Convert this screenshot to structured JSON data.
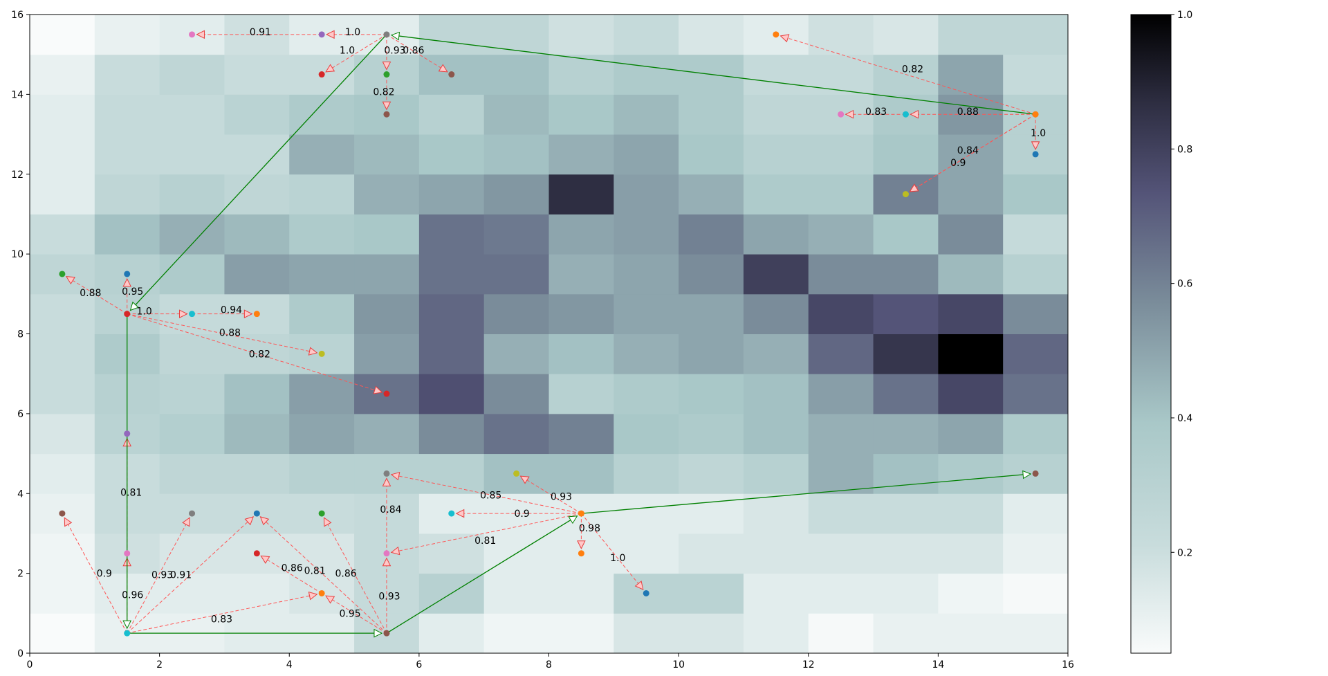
{
  "chart_data": {
    "type": "heatmap",
    "title": "",
    "xlabel": "",
    "ylabel": "",
    "xlim": [
      0,
      16
    ],
    "ylim": [
      0,
      16
    ],
    "x_ticks": [
      0,
      2,
      4,
      6,
      8,
      10,
      12,
      14,
      16
    ],
    "y_ticks": [
      0,
      2,
      4,
      6,
      8,
      10,
      12,
      14,
      16
    ],
    "grid": false,
    "legend": "none",
    "colormap": "bone_r",
    "colorbar": {
      "range": [
        0.05,
        1.0
      ],
      "ticks": [
        0.2,
        0.4,
        0.6,
        0.8,
        1.0
      ]
    },
    "heatmap": [
      [
        0.05,
        0.1,
        0.1,
        0.12,
        0.12,
        0.22,
        0.12,
        0.08,
        0.08,
        0.15,
        0.15,
        0.12,
        0.06,
        0.1,
        0.1,
        0.1
      ],
      [
        0.08,
        0.12,
        0.12,
        0.12,
        0.15,
        0.22,
        0.3,
        0.12,
        0.12,
        0.28,
        0.28,
        0.12,
        0.12,
        0.12,
        0.08,
        0.06
      ],
      [
        0.08,
        0.18,
        0.15,
        0.15,
        0.15,
        0.22,
        0.18,
        0.12,
        0.12,
        0.12,
        0.15,
        0.15,
        0.15,
        0.15,
        0.15,
        0.1
      ],
      [
        0.1,
        0.2,
        0.2,
        0.2,
        0.2,
        0.22,
        0.12,
        0.12,
        0.12,
        0.12,
        0.12,
        0.15,
        0.2,
        0.2,
        0.2,
        0.12
      ],
      [
        0.12,
        0.2,
        0.25,
        0.25,
        0.3,
        0.3,
        0.3,
        0.4,
        0.4,
        0.3,
        0.25,
        0.3,
        0.45,
        0.4,
        0.35,
        0.3
      ],
      [
        0.15,
        0.28,
        0.32,
        0.42,
        0.48,
        0.45,
        0.55,
        0.62,
        0.58,
        0.38,
        0.35,
        0.4,
        0.45,
        0.45,
        0.48,
        0.35
      ],
      [
        0.2,
        0.3,
        0.28,
        0.4,
        0.5,
        0.62,
        0.72,
        0.55,
        0.3,
        0.35,
        0.38,
        0.4,
        0.5,
        0.62,
        0.75,
        0.62
      ],
      [
        0.2,
        0.35,
        0.25,
        0.25,
        0.28,
        0.5,
        0.65,
        0.45,
        0.4,
        0.45,
        0.48,
        0.45,
        0.65,
        0.82,
        1.0,
        0.65
      ],
      [
        0.2,
        0.28,
        0.22,
        0.22,
        0.35,
        0.52,
        0.65,
        0.55,
        0.52,
        0.48,
        0.48,
        0.55,
        0.75,
        0.7,
        0.75,
        0.55
      ],
      [
        0.25,
        0.3,
        0.35,
        0.5,
        0.48,
        0.48,
        0.62,
        0.62,
        0.45,
        0.48,
        0.55,
        0.78,
        0.55,
        0.55,
        0.42,
        0.3
      ],
      [
        0.2,
        0.4,
        0.45,
        0.42,
        0.35,
        0.38,
        0.62,
        0.6,
        0.48,
        0.5,
        0.58,
        0.48,
        0.45,
        0.38,
        0.55,
        0.22
      ],
      [
        0.12,
        0.25,
        0.3,
        0.25,
        0.28,
        0.45,
        0.48,
        0.52,
        0.85,
        0.5,
        0.45,
        0.35,
        0.35,
        0.58,
        0.48,
        0.38
      ],
      [
        0.12,
        0.22,
        0.22,
        0.22,
        0.45,
        0.42,
        0.38,
        0.4,
        0.45,
        0.48,
        0.38,
        0.3,
        0.3,
        0.38,
        0.48,
        0.3
      ],
      [
        0.12,
        0.22,
        0.22,
        0.28,
        0.35,
        0.38,
        0.3,
        0.42,
        0.38,
        0.42,
        0.35,
        0.25,
        0.25,
        0.35,
        0.52,
        0.3
      ],
      [
        0.1,
        0.2,
        0.25,
        0.2,
        0.2,
        0.3,
        0.4,
        0.4,
        0.3,
        0.35,
        0.35,
        0.22,
        0.22,
        0.3,
        0.48,
        0.22
      ],
      [
        0.05,
        0.1,
        0.12,
        0.18,
        0.12,
        0.12,
        0.25,
        0.25,
        0.18,
        0.22,
        0.15,
        0.12,
        0.18,
        0.15,
        0.25,
        0.25
      ]
    ],
    "points": [
      {
        "x": 5.5,
        "y": 15.5,
        "color": "#7f7f7f"
      },
      {
        "x": 4.5,
        "y": 15.5,
        "color": "#9467bd"
      },
      {
        "x": 2.5,
        "y": 15.5,
        "color": "#e377c2"
      },
      {
        "x": 4.5,
        "y": 14.5,
        "color": "#d62728"
      },
      {
        "x": 5.5,
        "y": 14.5,
        "color": "#2ca02c"
      },
      {
        "x": 5.5,
        "y": 13.5,
        "color": "#8c564b"
      },
      {
        "x": 6.5,
        "y": 14.5,
        "color": "#8c564b"
      },
      {
        "x": 15.5,
        "y": 13.5,
        "color": "#ff7f0e"
      },
      {
        "x": 11.5,
        "y": 15.5,
        "color": "#ff7f0e"
      },
      {
        "x": 13.5,
        "y": 13.5,
        "color": "#17becf"
      },
      {
        "x": 12.5,
        "y": 13.5,
        "color": "#e377c2"
      },
      {
        "x": 15.5,
        "y": 12.5,
        "color": "#1f77b4"
      },
      {
        "x": 13.5,
        "y": 11.5,
        "color": "#bcbd22"
      },
      {
        "x": 1.5,
        "y": 8.5,
        "color": "#d62728"
      },
      {
        "x": 0.5,
        "y": 9.5,
        "color": "#2ca02c"
      },
      {
        "x": 1.5,
        "y": 9.5,
        "color": "#1f77b4"
      },
      {
        "x": 2.5,
        "y": 8.5,
        "color": "#17becf"
      },
      {
        "x": 3.5,
        "y": 8.5,
        "color": "#ff7f0e"
      },
      {
        "x": 4.5,
        "y": 7.5,
        "color": "#bcbd22"
      },
      {
        "x": 5.5,
        "y": 6.5,
        "color": "#d62728"
      },
      {
        "x": 1.5,
        "y": 5.5,
        "color": "#9467bd"
      },
      {
        "x": 1.5,
        "y": 0.5,
        "color": "#17becf"
      },
      {
        "x": 0.5,
        "y": 3.5,
        "color": "#8c564b"
      },
      {
        "x": 1.5,
        "y": 2.5,
        "color": "#e377c2"
      },
      {
        "x": 2.5,
        "y": 3.5,
        "color": "#7f7f7f"
      },
      {
        "x": 3.5,
        "y": 3.5,
        "color": "#1f77b4"
      },
      {
        "x": 4.5,
        "y": 1.5,
        "color": "#ff7f0e"
      },
      {
        "x": 5.5,
        "y": 0.5,
        "color": "#8c564b"
      },
      {
        "x": 3.5,
        "y": 2.5,
        "color": "#d62728"
      },
      {
        "x": 4.5,
        "y": 3.5,
        "color": "#2ca02c"
      },
      {
        "x": 5.5,
        "y": 2.5,
        "color": "#e377c2"
      },
      {
        "x": 5.5,
        "y": 4.5,
        "color": "#7f7f7f"
      },
      {
        "x": 8.5,
        "y": 3.5,
        "color": "#ff7f0e"
      },
      {
        "x": 7.5,
        "y": 4.5,
        "color": "#bcbd22"
      },
      {
        "x": 6.5,
        "y": 3.5,
        "color": "#17becf"
      },
      {
        "x": 8.5,
        "y": 2.5,
        "color": "#ff7f0e"
      },
      {
        "x": 9.5,
        "y": 1.5,
        "color": "#1f77b4"
      },
      {
        "x": 15.5,
        "y": 4.5,
        "color": "#8c564b"
      }
    ],
    "green_edges": [
      {
        "from": [
          15.5,
          13.5
        ],
        "to": [
          5.5,
          15.5
        ]
      },
      {
        "from": [
          5.5,
          15.5
        ],
        "to": [
          1.5,
          8.5
        ]
      },
      {
        "from": [
          1.5,
          8.5
        ],
        "to": [
          1.5,
          0.5
        ]
      },
      {
        "from": [
          1.5,
          0.5
        ],
        "to": [
          5.5,
          0.5
        ]
      },
      {
        "from": [
          5.5,
          0.5
        ],
        "to": [
          8.5,
          3.5
        ]
      },
      {
        "from": [
          8.5,
          3.5
        ],
        "to": [
          15.5,
          4.5
        ]
      }
    ],
    "red_edges": [
      {
        "from": [
          5.5,
          15.5
        ],
        "to": [
          4.5,
          15.5
        ],
        "label": "1.0"
      },
      {
        "from": [
          4.5,
          15.5
        ],
        "to": [
          2.5,
          15.5
        ],
        "label": "0.91"
      },
      {
        "from": [
          5.5,
          15.5
        ],
        "to": [
          4.5,
          14.5
        ],
        "label": "1.0"
      },
      {
        "from": [
          5.5,
          15.5
        ],
        "to": [
          5.5,
          14.5
        ],
        "label": "0.93"
      },
      {
        "from": [
          5.5,
          14.5
        ],
        "to": [
          5.5,
          13.5
        ],
        "label": "0.82"
      },
      {
        "from": [
          5.5,
          15.5
        ],
        "to": [
          6.5,
          14.5
        ],
        "label": "0.86"
      },
      {
        "from": [
          15.5,
          13.5
        ],
        "to": [
          11.5,
          15.5
        ],
        "label": "0.82"
      },
      {
        "from": [
          15.5,
          13.5
        ],
        "to": [
          13.5,
          13.5
        ],
        "label": "0.88"
      },
      {
        "from": [
          13.5,
          13.5
        ],
        "to": [
          12.5,
          13.5
        ],
        "label": "0.83"
      },
      {
        "from": [
          15.5,
          13.5
        ],
        "to": [
          15.5,
          12.5
        ],
        "label": "1.0"
      },
      {
        "from": [
          15.5,
          13.5
        ],
        "to": [
          13.5,
          11.5
        ],
        "label": "0.84"
      },
      {
        "from": [
          15.5,
          13.5
        ],
        "to": [
          13.5,
          11.5
        ],
        "label": "0.9"
      },
      {
        "from": [
          1.5,
          8.5
        ],
        "to": [
          0.5,
          9.5
        ],
        "label": "0.88"
      },
      {
        "from": [
          1.5,
          8.5
        ],
        "to": [
          1.5,
          9.5
        ],
        "label": "0.95"
      },
      {
        "from": [
          1.5,
          8.5
        ],
        "to": [
          2.5,
          8.5
        ],
        "label": "1.0"
      },
      {
        "from": [
          2.5,
          8.5
        ],
        "to": [
          3.5,
          8.5
        ],
        "label": "0.94"
      },
      {
        "from": [
          1.5,
          8.5
        ],
        "to": [
          4.5,
          7.5
        ],
        "label": "0.88"
      },
      {
        "from": [
          1.5,
          8.5
        ],
        "to": [
          5.5,
          6.5
        ],
        "label": "0.82"
      },
      {
        "from": [
          1.5,
          0.5
        ],
        "to": [
          0.5,
          3.5
        ],
        "label": "0.9"
      },
      {
        "from": [
          1.5,
          0.5
        ],
        "to": [
          1.5,
          2.5
        ],
        "label": "0.96"
      },
      {
        "from": [
          1.5,
          2.5
        ],
        "to": [
          1.5,
          5.5
        ],
        "label": "0.81"
      },
      {
        "from": [
          1.5,
          0.5
        ],
        "to": [
          2.5,
          3.5
        ],
        "label": "0.93"
      },
      {
        "from": [
          1.5,
          0.5
        ],
        "to": [
          3.5,
          3.5
        ],
        "label": "0.91"
      },
      {
        "from": [
          1.5,
          0.5
        ],
        "to": [
          4.5,
          1.5
        ],
        "label": "0.83"
      },
      {
        "from": [
          5.5,
          0.5
        ],
        "to": [
          4.5,
          1.5
        ],
        "label": "0.95"
      },
      {
        "from": [
          4.5,
          1.5
        ],
        "to": [
          3.5,
          2.5
        ],
        "label": "0.86"
      },
      {
        "from": [
          5.5,
          0.5
        ],
        "to": [
          3.5,
          3.5
        ],
        "label": "0.81"
      },
      {
        "from": [
          5.5,
          0.5
        ],
        "to": [
          4.5,
          3.5
        ],
        "label": "0.86"
      },
      {
        "from": [
          5.5,
          0.5
        ],
        "to": [
          5.5,
          2.5
        ],
        "label": "0.93"
      },
      {
        "from": [
          5.5,
          2.5
        ],
        "to": [
          5.5,
          4.5
        ],
        "label": "0.84"
      },
      {
        "from": [
          8.5,
          3.5
        ],
        "to": [
          5.5,
          4.5
        ],
        "label": "0.85"
      },
      {
        "from": [
          8.5,
          3.5
        ],
        "to": [
          7.5,
          4.5
        ],
        "label": "0.93"
      },
      {
        "from": [
          8.5,
          3.5
        ],
        "to": [
          6.5,
          3.5
        ],
        "label": "0.9"
      },
      {
        "from": [
          8.5,
          3.5
        ],
        "to": [
          5.5,
          2.5
        ],
        "label": "0.81"
      },
      {
        "from": [
          8.5,
          3.5
        ],
        "to": [
          8.5,
          2.5
        ],
        "label": "0.98"
      },
      {
        "from": [
          8.5,
          3.5
        ],
        "to": [
          9.5,
          1.5
        ],
        "label": "1.0"
      }
    ],
    "colors": {
      "path_edge": "#008000",
      "candidate_edge": "#ff5555"
    }
  }
}
